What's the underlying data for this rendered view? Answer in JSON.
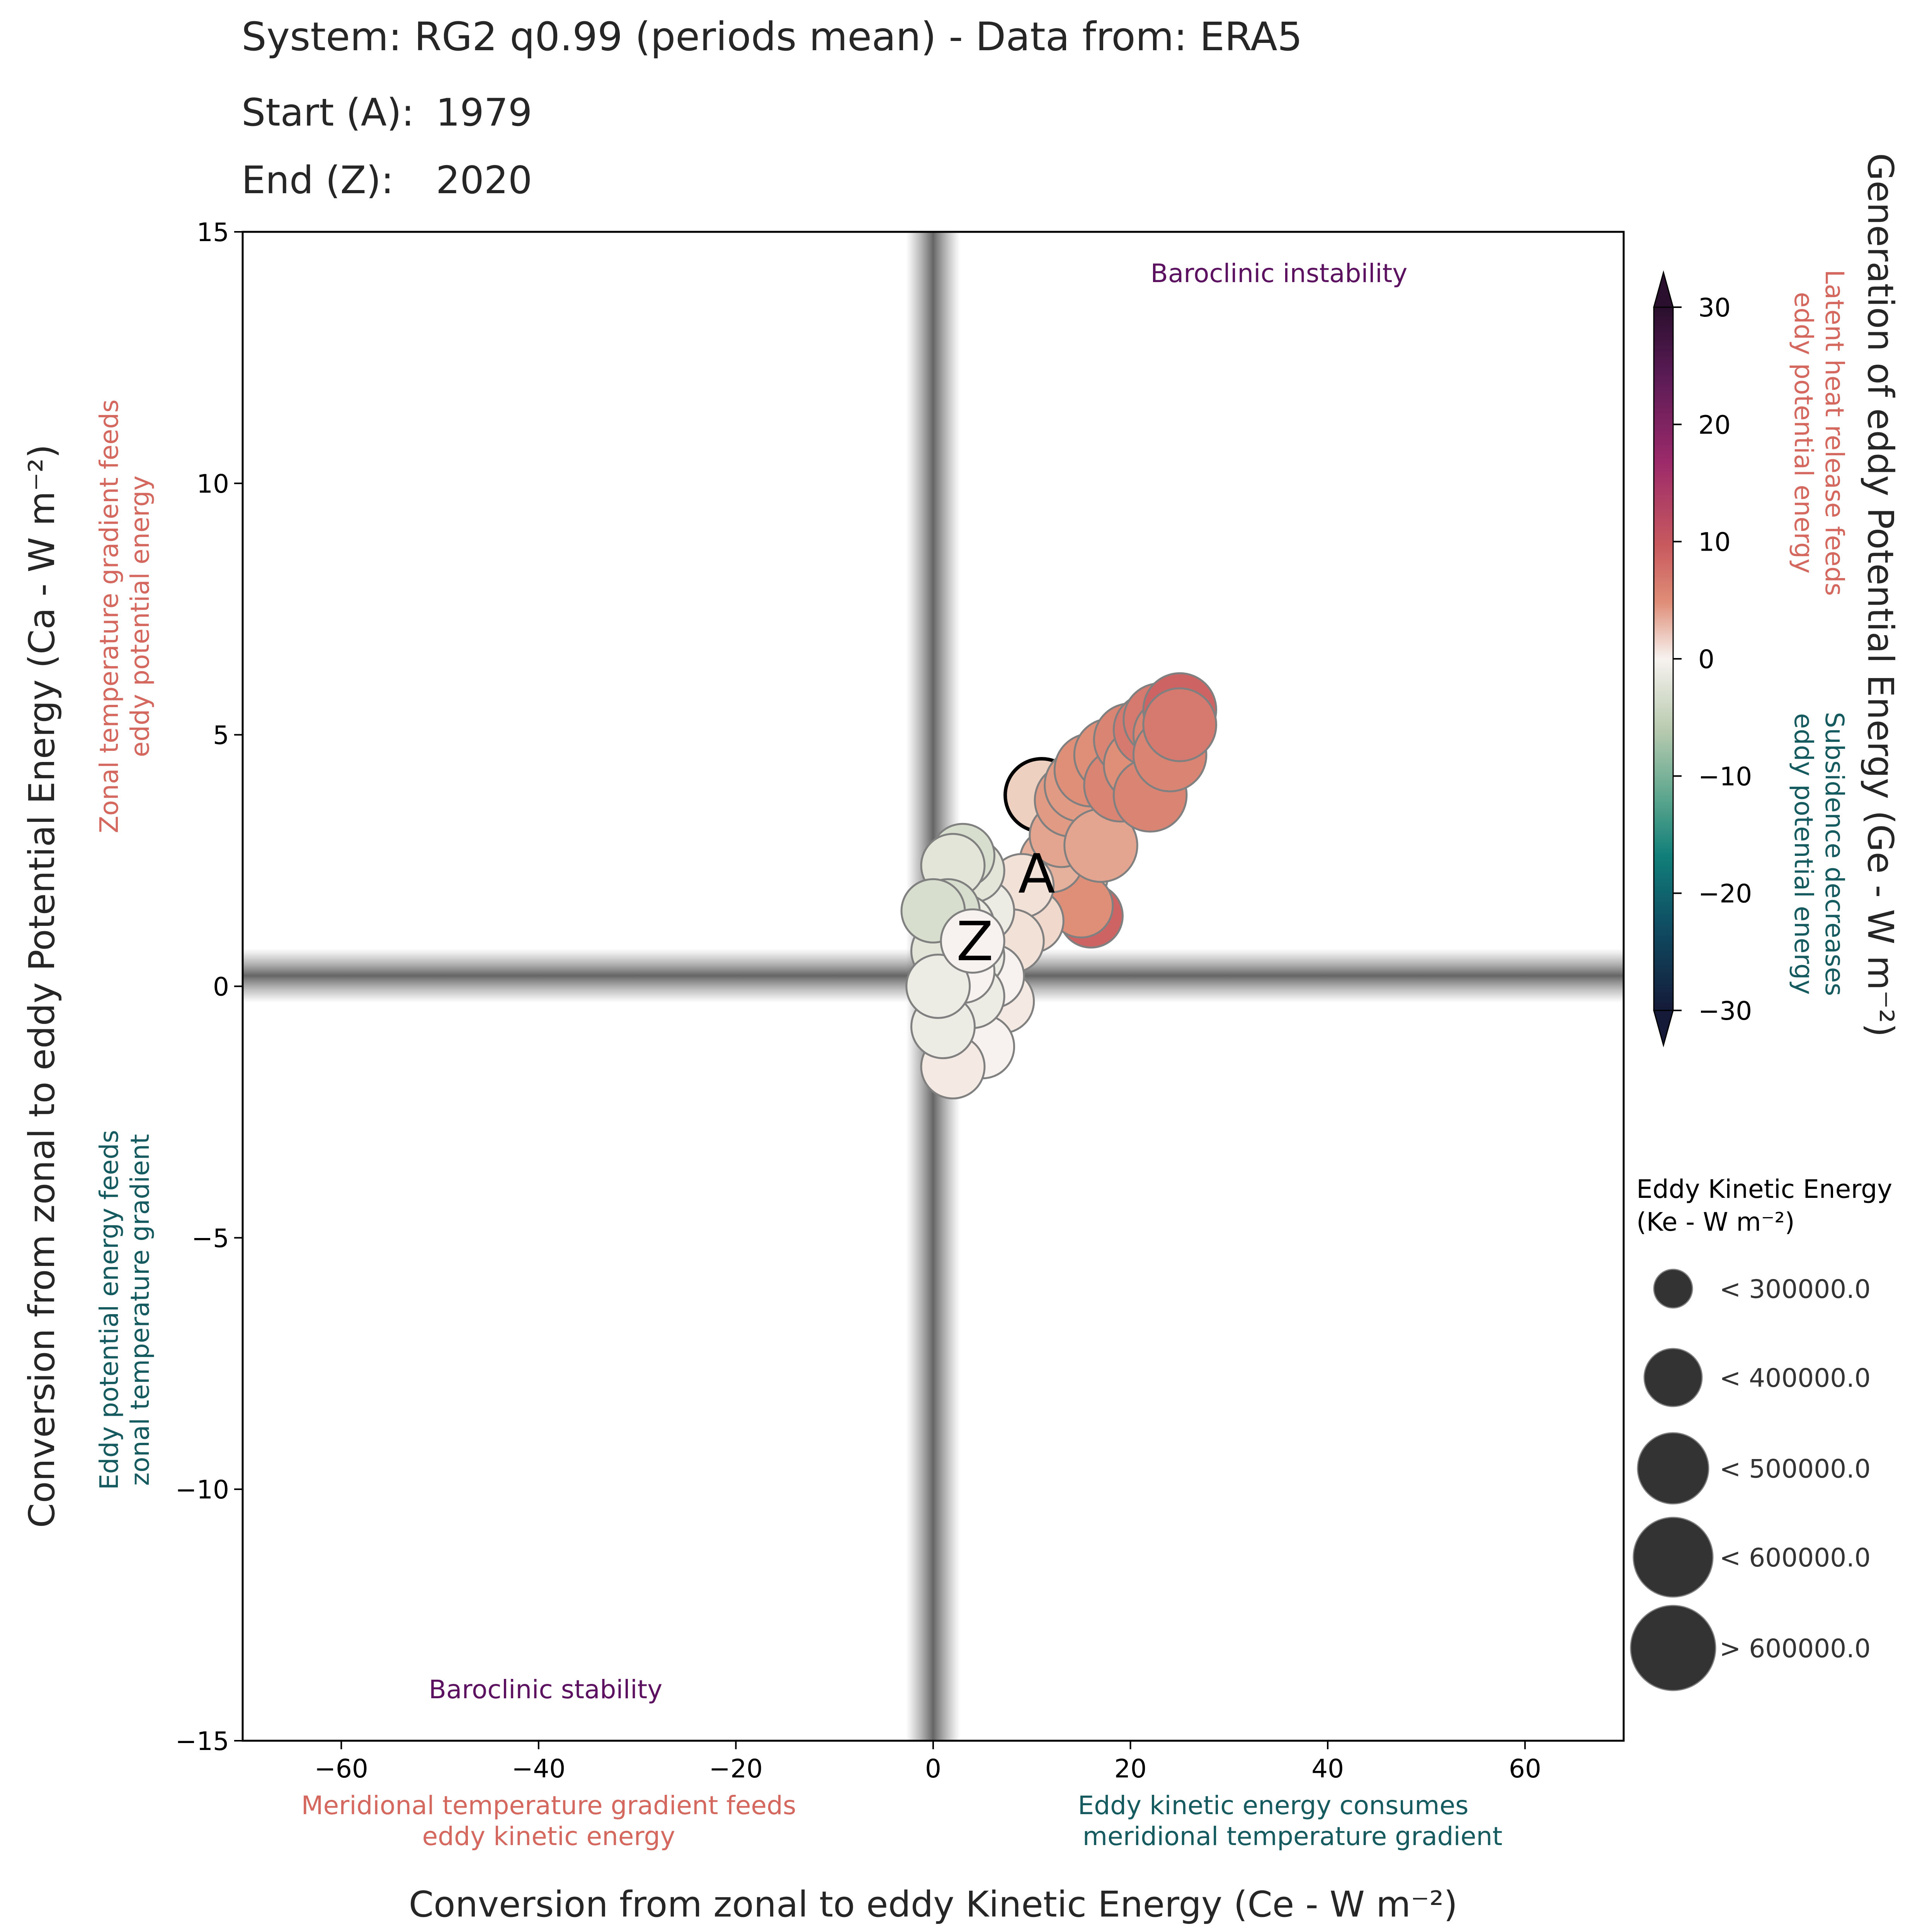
{
  "header": {
    "system_line": "System: RG2 q0.99 (periods mean) - Data from: ERA5",
    "start_label": "Start (A):",
    "start_value": "1979",
    "end_label": "End (Z):",
    "end_value": "2020"
  },
  "chart_data": {
    "type": "scatter",
    "xlim": [
      -70,
      70
    ],
    "ylim": [
      -15,
      15
    ],
    "x_ticks": [
      -60,
      -40,
      -20,
      0,
      20,
      40,
      60
    ],
    "y_ticks": [
      -15,
      -10,
      -5,
      0,
      5,
      10,
      15
    ],
    "xlabel": "Conversion from zonal to eddy Kinetic Energy (Ce - W m⁻²)",
    "ylabel": "Conversion from zonal to eddy Potential Energy (Ca - W m⁻²)",
    "quadrant_labels": {
      "top_right": "Baroclinic instability",
      "bottom_left": "Baroclinic stability"
    },
    "axis_notes": {
      "x_negative": [
        "Meridional temperature gradient feeds",
        "eddy kinetic energy"
      ],
      "x_positive": [
        "Eddy kinetic energy consumes",
        "meridional temperature gradient"
      ],
      "y_positive": [
        "Zonal temperature gradient feeds",
        "eddy potential energy"
      ],
      "y_negative": [
        "Eddy potential energy feeds",
        "zonal temperature gradient"
      ]
    },
    "colorbar": {
      "label": "Generation of eddy Potential Energy (Ge - W m⁻²)",
      "range": [
        -30,
        30
      ],
      "ticks": [
        30,
        20,
        10,
        0,
        -10,
        -20,
        -30
      ],
      "positive_note": [
        "Latent heat release feeds",
        "eddy potential energy"
      ],
      "negative_note": [
        "Subsidence decreases",
        "eddy potential energy"
      ]
    },
    "size_legend": {
      "title_line1": "Eddy Kinetic Energy",
      "title_line2": "(Ke - W m⁻²)",
      "entries": [
        "< 300000.0",
        "< 400000.0",
        "< 500000.0",
        "< 600000.0",
        "> 600000.0"
      ]
    },
    "start_marker": "A",
    "end_marker": "Z",
    "points": [
      {
        "x": 11,
        "y": 3.8,
        "ge": 4,
        "size": 3
      },
      {
        "x": 14,
        "y": 2.2,
        "ge": 4,
        "size": 3
      },
      {
        "x": 16,
        "y": 1.4,
        "ge": 14,
        "size": 2
      },
      {
        "x": 15,
        "y": 1.6,
        "ge": 10,
        "size": 2
      },
      {
        "x": 12,
        "y": 2.5,
        "ge": 7,
        "size": 2
      },
      {
        "x": 13,
        "y": 3.0,
        "ge": 8,
        "size": 2
      },
      {
        "x": 14,
        "y": 3.7,
        "ge": 9,
        "size": 3
      },
      {
        "x": 15,
        "y": 4.0,
        "ge": 9,
        "size": 3
      },
      {
        "x": 16,
        "y": 4.3,
        "ge": 10,
        "size": 3
      },
      {
        "x": 17,
        "y": 2.8,
        "ge": 8,
        "size": 3
      },
      {
        "x": 18,
        "y": 4.6,
        "ge": 10,
        "size": 3
      },
      {
        "x": 19,
        "y": 4.0,
        "ge": 11,
        "size": 3
      },
      {
        "x": 20,
        "y": 4.9,
        "ge": 11,
        "size": 3
      },
      {
        "x": 21,
        "y": 4.4,
        "ge": 10,
        "size": 3
      },
      {
        "x": 22,
        "y": 5.1,
        "ge": 12,
        "size": 3
      },
      {
        "x": 22,
        "y": 3.8,
        "ge": 11,
        "size": 3
      },
      {
        "x": 23,
        "y": 5.3,
        "ge": 12,
        "size": 3
      },
      {
        "x": 24,
        "y": 5.0,
        "ge": 11,
        "size": 3
      },
      {
        "x": 24,
        "y": 4.6,
        "ge": 11,
        "size": 3
      },
      {
        "x": 25,
        "y": 5.5,
        "ge": 14,
        "size": 3
      },
      {
        "x": 25,
        "y": 5.2,
        "ge": 12,
        "size": 3
      },
      {
        "x": 10,
        "y": 1.3,
        "ge": 3,
        "size": 2
      },
      {
        "x": 9,
        "y": 2.0,
        "ge": 2,
        "size": 2
      },
      {
        "x": 8,
        "y": 0.9,
        "ge": 2,
        "size": 2
      },
      {
        "x": 7,
        "y": -0.3,
        "ge": 1,
        "size": 2
      },
      {
        "x": 6,
        "y": 0.2,
        "ge": 0,
        "size": 2
      },
      {
        "x": 5,
        "y": 1.5,
        "ge": -1,
        "size": 2
      },
      {
        "x": 5,
        "y": -1.2,
        "ge": 0,
        "size": 2
      },
      {
        "x": 4,
        "y": 2.3,
        "ge": -2,
        "size": 2
      },
      {
        "x": 4,
        "y": 0.6,
        "ge": -1,
        "size": 2
      },
      {
        "x": 4,
        "y": -0.2,
        "ge": -1,
        "size": 2
      },
      {
        "x": 3,
        "y": 2.6,
        "ge": -3,
        "size": 2
      },
      {
        "x": 3,
        "y": 1.2,
        "ge": -1,
        "size": 2
      },
      {
        "x": 3,
        "y": 0.3,
        "ge": 0,
        "size": 2
      },
      {
        "x": 2,
        "y": 2.4,
        "ge": -2,
        "size": 2
      },
      {
        "x": 2,
        "y": -1.6,
        "ge": 1,
        "size": 2
      },
      {
        "x": 1.5,
        "y": 1.5,
        "ge": -3,
        "size": 2
      },
      {
        "x": 1,
        "y": 0.7,
        "ge": -2,
        "size": 2
      },
      {
        "x": 1,
        "y": -0.8,
        "ge": -1,
        "size": 2
      },
      {
        "x": 0.5,
        "y": 0.0,
        "ge": -1,
        "size": 2
      },
      {
        "x": 0,
        "y": 1.5,
        "ge": -3,
        "size": 2
      },
      {
        "x": 4,
        "y": 0.9,
        "ge": 0,
        "size": 2
      }
    ]
  },
  "colors": {
    "axis": "#000000",
    "text": "#262626",
    "marker_edge": "#808080",
    "quadrant_label": "#5b1060",
    "warm_note": "#d4685f",
    "cool_note": "#145a5e"
  }
}
